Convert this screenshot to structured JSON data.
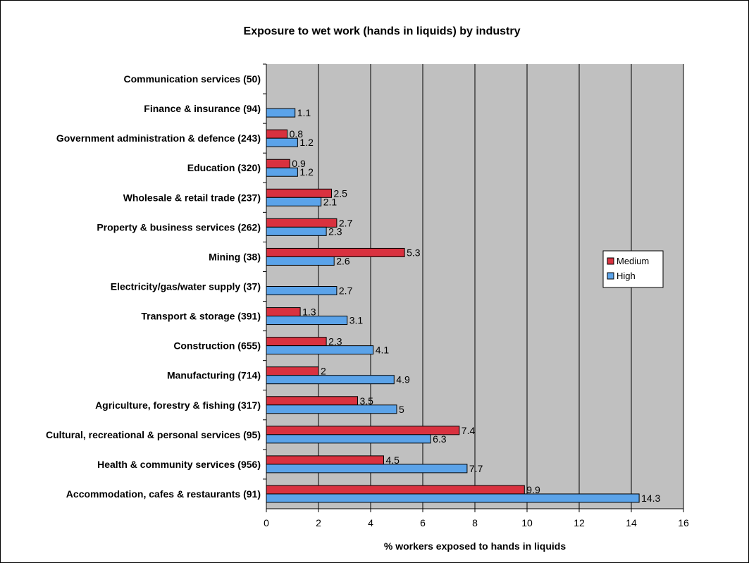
{
  "chart_data": {
    "type": "bar",
    "orientation": "horizontal",
    "title": "Exposure to wet work (hands in liquids) by industry",
    "xlabel": "% workers exposed to hands in liquids",
    "ylabel": "",
    "xlim": [
      0,
      16
    ],
    "xticks": [
      0,
      2,
      4,
      6,
      8,
      10,
      12,
      14,
      16
    ],
    "grid": "vertical",
    "legend_position": "right",
    "plot_background": "#c0c0c0",
    "categories": [
      "Communication services (50)",
      "Finance & insurance (94)",
      "Government administration & defence (243)",
      "Education (320)",
      "Wholesale & retail trade (237)",
      "Property & business services (262)",
      "Mining (38)",
      "Electricity/gas/water supply (37)",
      "Transport & storage (391)",
      "Construction (655)",
      "Manufacturing (714)",
      "Agriculture, forestry & fishing (317)",
      "Cultural, recreational & personal services (95)",
      "Health & community services (956)",
      "Accommodation, cafes & restaurants (91)"
    ],
    "series": [
      {
        "name": "Medium",
        "color": "#d9313f",
        "values": [
          null,
          null,
          0.8,
          0.9,
          2.5,
          2.7,
          5.3,
          null,
          1.3,
          2.3,
          2,
          3.5,
          7.4,
          4.5,
          9.9
        ],
        "labels": [
          "",
          "",
          "0.8",
          "0.9",
          "2.5",
          "2.7",
          "5.3",
          "",
          "1.3",
          "2.3",
          "2",
          "3.5",
          "7.4",
          "4.5",
          "9.9"
        ]
      },
      {
        "name": "High",
        "color": "#5ba3e9",
        "values": [
          null,
          1.1,
          1.2,
          1.2,
          2.1,
          2.3,
          2.6,
          2.7,
          3.1,
          4.1,
          4.9,
          5,
          6.3,
          7.7,
          14.3
        ],
        "labels": [
          "",
          "1.1",
          "1.2",
          "1.2",
          "2.1",
          "2.3",
          "2.6",
          "2.7",
          "3.1",
          "4.1",
          "4.9",
          "5",
          "6.3",
          "7.7",
          "14.3"
        ]
      }
    ]
  }
}
